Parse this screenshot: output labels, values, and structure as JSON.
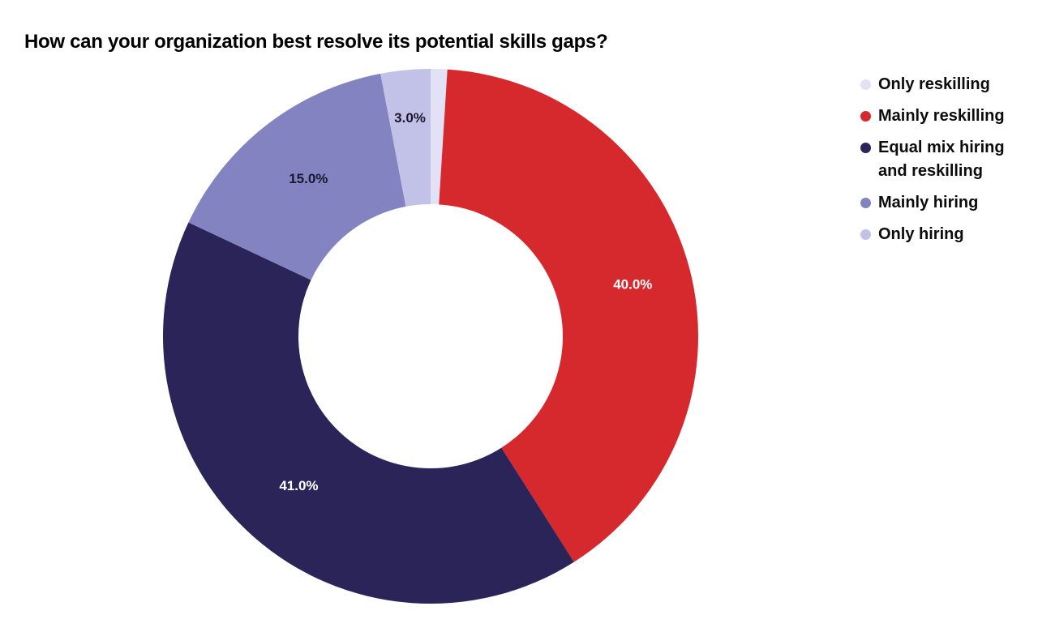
{
  "chart_data": {
    "type": "pie",
    "subtype": "donut",
    "title": "How can your organization best resolve its potential skills gaps?",
    "unit": "%",
    "categories": [
      "Only reskilling",
      "Mainly reskilling",
      "Equal mix hiring and reskilling",
      "Mainly hiring",
      "Only hiring"
    ],
    "values": [
      1.0,
      40.0,
      41.0,
      15.0,
      3.0
    ],
    "colors": [
      "#E2E1F6",
      "#D5292E",
      "#2B2458",
      "#8483C2",
      "#C2C1E7"
    ],
    "data_labels": [
      "",
      "40.0%",
      "41.0%",
      "15.0%",
      "3.0%"
    ],
    "data_label_colors": [
      "",
      "#FFFFFF",
      "#FFFFFF",
      "#17172F",
      "#17172F"
    ],
    "data_label_radius": [
      0.75,
      0.78,
      0.745,
      0.745,
      0.82
    ],
    "start_angle_deg": 0,
    "direction": "clockwise",
    "inner_radius_ratio": 0.494,
    "legend_position": "right",
    "background": "#FFFFFF"
  }
}
